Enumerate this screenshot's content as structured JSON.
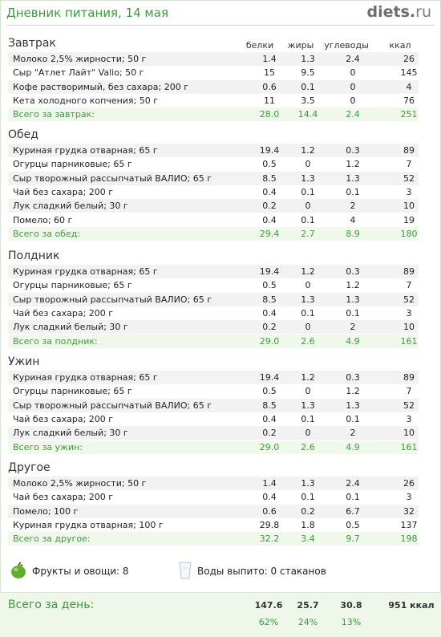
{
  "header": {
    "title": "Дневник питания, 14 мая",
    "logo_main": "diets",
    "logo_dot": ".",
    "logo_tld": "ru"
  },
  "columns": {
    "protein": "белки",
    "fat": "жиры",
    "carbs": "углеводы",
    "kcal": "ккал"
  },
  "sections": [
    {
      "title": "Завтрак",
      "rows": [
        [
          "Молоко 2,5% жирности; 50 г",
          "1.4",
          "1.3",
          "2.4",
          "26"
        ],
        [
          "Сыр \"Атлет Лайт\" Valio; 50 г",
          "15",
          "9.5",
          "0",
          "145"
        ],
        [
          "Кофе растворимый, без сахара; 200 г",
          "0.6",
          "0.1",
          "0",
          "4"
        ],
        [
          "Кета холодного копчения; 50 г",
          "11",
          "3.5",
          "0",
          "76"
        ]
      ],
      "total": [
        "Всего за завтрак:",
        "28.0",
        "14.4",
        "2.4",
        "251"
      ]
    },
    {
      "title": "Обед",
      "rows": [
        [
          "Куриная грудка отварная; 65 г",
          "19.4",
          "1.2",
          "0.3",
          "89"
        ],
        [
          "Огурцы парниковые; 65 г",
          "0.5",
          "0",
          "1.2",
          "7"
        ],
        [
          "Сыр творожный рассыпчатый ВАЛИО; 65 г",
          "8.5",
          "1.3",
          "1.3",
          "52"
        ],
        [
          "Чай без сахара; 200 г",
          "0.4",
          "0.1",
          "0.1",
          "3"
        ],
        [
          "Лук сладкий белый; 30 г",
          "0.2",
          "0",
          "2",
          "10"
        ],
        [
          "Помело; 60 г",
          "0.4",
          "0.1",
          "4",
          "19"
        ]
      ],
      "total": [
        "Всего за обед:",
        "29.4",
        "2.7",
        "8.9",
        "180"
      ]
    },
    {
      "title": "Полдник",
      "rows": [
        [
          "Куриная грудка отварная; 65 г",
          "19.4",
          "1.2",
          "0.3",
          "89"
        ],
        [
          "Огурцы парниковые; 65 г",
          "0.5",
          "0",
          "1.2",
          "7"
        ],
        [
          "Сыр творожный рассыпчатый ВАЛИО; 65 г",
          "8.5",
          "1.3",
          "1.3",
          "52"
        ],
        [
          "Чай без сахара; 200 г",
          "0.4",
          "0.1",
          "0.1",
          "3"
        ],
        [
          "Лук сладкий белый; 30 г",
          "0.2",
          "0",
          "2",
          "10"
        ]
      ],
      "total": [
        "Всего за полдник:",
        "29.0",
        "2.6",
        "4.9",
        "161"
      ]
    },
    {
      "title": "Ужин",
      "rows": [
        [
          "Куриная грудка отварная; 65 г",
          "19.4",
          "1.2",
          "0.3",
          "89"
        ],
        [
          "Огурцы парниковые; 65 г",
          "0.5",
          "0",
          "1.2",
          "7"
        ],
        [
          "Сыр творожный рассыпчатый ВАЛИО; 65 г",
          "8.5",
          "1.3",
          "1.3",
          "52"
        ],
        [
          "Чай без сахара; 200 г",
          "0.4",
          "0.1",
          "0.1",
          "3"
        ],
        [
          "Лук сладкий белый; 30 г",
          "0.2",
          "0",
          "2",
          "10"
        ]
      ],
      "total": [
        "Всего за ужин:",
        "29.0",
        "2.6",
        "4.9",
        "161"
      ]
    },
    {
      "title": "Другое",
      "rows": [
        [
          "Молоко 2,5% жирности; 50 г",
          "1.4",
          "1.3",
          "2.4",
          "26"
        ],
        [
          "Чай без сахара; 200 г",
          "0.4",
          "0.1",
          "0.1",
          "3"
        ],
        [
          "Помело; 100 г",
          "0.6",
          "0.2",
          "6.7",
          "32"
        ],
        [
          "Куриная грудка отварная; 100 г",
          "29.8",
          "1.8",
          "0.5",
          "137"
        ]
      ],
      "total": [
        "Всего за другое:",
        "32.2",
        "3.4",
        "9.7",
        "198"
      ]
    }
  ],
  "extras": {
    "fruits": "Фрукты и овощи: 8",
    "water": "Воды выпито: 0 стаканов"
  },
  "day_total": {
    "label": "Всего за день:",
    "protein": "147.6",
    "fat": "25.7",
    "carbs": "30.8",
    "kcal": "951 ккал",
    "protein_pct": "62%",
    "fat_pct": "24%",
    "carbs_pct": "13%"
  },
  "colors": {
    "accent_green": "#3c9a3c",
    "row_alt": "#f2f2f2",
    "total_bg": "#f0f8ec"
  }
}
